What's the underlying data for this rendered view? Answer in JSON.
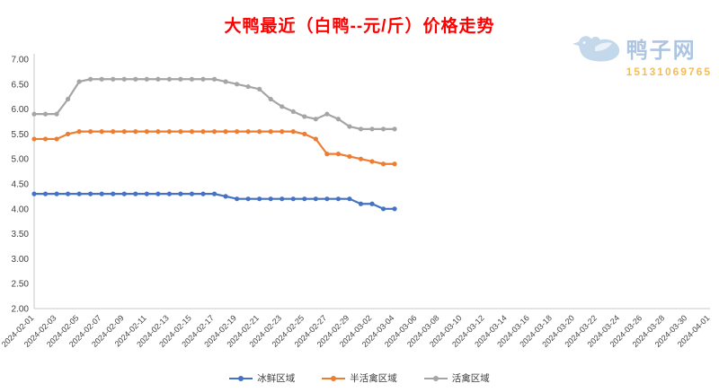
{
  "title": "大鸭最近（白鸭--元/斤）价格走势",
  "watermark": {
    "icon": "duck-logo-icon",
    "brand": "鸭子网",
    "phone": "15131069765"
  },
  "chart_data": {
    "type": "line",
    "title": "大鸭最近（白鸭--元/斤）价格走势",
    "xlabel": "",
    "ylabel": "",
    "ylim": [
      2.0,
      7.0
    ],
    "ytick_step": 0.5,
    "grid": false,
    "legend_position": "bottom",
    "ytick_labels": [
      "7.00",
      "6.50",
      "6.00",
      "5.50",
      "5.00",
      "4.50",
      "4.00",
      "3.50",
      "3.00",
      "2.50",
      "2.00"
    ],
    "xtick_labels": [
      "2024-02-01",
      "2024-02-03",
      "2024-02-05",
      "2024-02-07",
      "2024-02-09",
      "2024-02-11",
      "2024-02-13",
      "2024-02-15",
      "2024-02-17",
      "2024-02-19",
      "2024-02-21",
      "2024-02-23",
      "2024-02-25",
      "2024-02-27",
      "2024-02-29",
      "2024-03-02",
      "2024-03-04",
      "2024-03-06",
      "2024-03-08",
      "2024-03-10",
      "2024-03-12",
      "2024-03-14",
      "2024-03-16",
      "2024-03-18",
      "2024-03-20",
      "2024-03-22",
      "2024-03-24",
      "2024-03-26",
      "2024-03-28",
      "2024-03-30",
      "2024-04-01"
    ],
    "dates": [
      "2024-02-01",
      "2024-02-02",
      "2024-02-03",
      "2024-02-04",
      "2024-02-05",
      "2024-02-06",
      "2024-02-07",
      "2024-02-08",
      "2024-02-09",
      "2024-02-10",
      "2024-02-11",
      "2024-02-12",
      "2024-02-13",
      "2024-02-14",
      "2024-02-15",
      "2024-02-16",
      "2024-02-17",
      "2024-02-18",
      "2024-02-19",
      "2024-02-20",
      "2024-02-21",
      "2024-02-22",
      "2024-02-23",
      "2024-02-24",
      "2024-02-25",
      "2024-02-26",
      "2024-02-27",
      "2024-02-28",
      "2024-02-29",
      "2024-03-01",
      "2024-03-02",
      "2024-03-03",
      "2024-03-04"
    ],
    "series": [
      {
        "name": "冰鲜区域",
        "color": "#4472C4",
        "values": [
          4.3,
          4.3,
          4.3,
          4.3,
          4.3,
          4.3,
          4.3,
          4.3,
          4.3,
          4.3,
          4.3,
          4.3,
          4.3,
          4.3,
          4.3,
          4.3,
          4.3,
          4.25,
          4.2,
          4.2,
          4.2,
          4.2,
          4.2,
          4.2,
          4.2,
          4.2,
          4.2,
          4.2,
          4.2,
          4.1,
          4.1,
          4.0,
          4.0
        ]
      },
      {
        "name": "半活禽区域",
        "color": "#ED7D31",
        "values": [
          5.4,
          5.4,
          5.4,
          5.5,
          5.55,
          5.55,
          5.55,
          5.55,
          5.55,
          5.55,
          5.55,
          5.55,
          5.55,
          5.55,
          5.55,
          5.55,
          5.55,
          5.55,
          5.55,
          5.55,
          5.55,
          5.55,
          5.55,
          5.55,
          5.5,
          5.4,
          5.1,
          5.1,
          5.05,
          5.0,
          4.95,
          4.9,
          4.9
        ]
      },
      {
        "name": "活禽区域",
        "color": "#A5A5A5",
        "values": [
          5.9,
          5.9,
          5.9,
          6.2,
          6.55,
          6.6,
          6.6,
          6.6,
          6.6,
          6.6,
          6.6,
          6.6,
          6.6,
          6.6,
          6.6,
          6.6,
          6.6,
          6.55,
          6.5,
          6.45,
          6.4,
          6.2,
          6.05,
          5.95,
          5.85,
          5.8,
          5.9,
          5.8,
          5.65,
          5.6,
          5.6,
          5.6,
          5.6
        ]
      }
    ]
  }
}
